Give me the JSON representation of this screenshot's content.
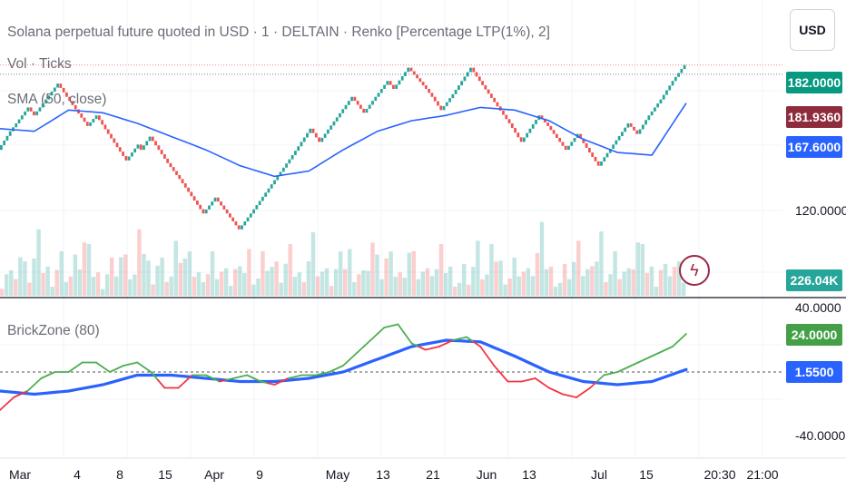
{
  "header": {
    "title": "Solana perpetual future quoted in USD · 1 · DELTAIN · Renko [Percentage LTP(1%), 2]",
    "vol_label": "Vol · Ticks",
    "sma_label": "SMA (50, close)",
    "indicator_label": "BrickZone (80)"
  },
  "currency_button": "USD",
  "price_axis": {
    "badges": {
      "last_price": "182.0000",
      "sma_value": "181.9360",
      "sma_line": "167.6000",
      "volume": "226.04K",
      "brickzone": "24.0000",
      "brickzone_signal": "1.5500"
    },
    "labels": {
      "p120": "120.0000",
      "osc_top": "40.0000",
      "osc_bottom": "-40.0000"
    }
  },
  "time_axis": [
    "Mar",
    "4",
    "8",
    "15",
    "Apr",
    "9",
    "May",
    "13",
    "21",
    "Jun",
    "13",
    "Jul",
    "15",
    "20:30",
    "21:00"
  ],
  "colors": {
    "up": "#26a69a",
    "down": "#ef5350",
    "sma": "#2962ff",
    "osc_up": "#4caf50",
    "osc_down": "#f23645",
    "signal": "#2962ff",
    "badge_green": "#089981",
    "badge_maroon": "#8e2c3b",
    "badge_blue": "#2962ff",
    "volume_badge": "#26a69a",
    "grid": "#f0f3fa"
  },
  "chart_data": [
    {
      "type": "line",
      "title": "Solana perpetual future quoted in USD · 1 · DELTAIN · Renko [Percentage LTP(1%), 2]",
      "series": [
        {
          "name": "",
          "style": "renko",
          "x": [
            0,
            2,
            4,
            6,
            8,
            10,
            12,
            14,
            16,
            18,
            20,
            22,
            24,
            26,
            28,
            30,
            32,
            34,
            36,
            38,
            40,
            42,
            44,
            46,
            48,
            50,
            52,
            54,
            56,
            58,
            60,
            62,
            64,
            66,
            68,
            70,
            72,
            74,
            76,
            78,
            80,
            82,
            84,
            86,
            88,
            90,
            92,
            94,
            96,
            98,
            100
          ],
          "values": [
            150,
            157,
            166,
            163,
            175,
            170,
            159,
            163,
            156,
            146,
            152,
            150,
            155,
            145,
            139,
            126,
            132,
            129,
            120,
            126,
            148,
            158,
            153,
            170,
            164,
            176,
            173,
            181,
            177,
            173,
            170,
            165,
            171,
            181,
            176,
            168,
            160,
            153,
            163,
            159,
            150,
            156,
            149,
            144,
            152,
            160,
            156,
            163,
            169,
            176,
            182
          ]
        },
        {
          "name": "SMA (50, close)",
          "x": [
            0,
            5,
            10,
            15,
            20,
            25,
            30,
            35,
            40,
            45,
            50,
            55,
            60,
            65,
            70,
            75,
            80,
            85,
            90,
            95,
            100
          ],
          "values": [
            158,
            157,
            165,
            164,
            160,
            155,
            150,
            144,
            140,
            142,
            150,
            157,
            161,
            163,
            166,
            165,
            161,
            154,
            149,
            148,
            167.6
          ]
        }
      ],
      "ylim": [
        110,
        186
      ],
      "reference_value": 181.936
    },
    {
      "type": "bar",
      "title": "Vol · Ticks",
      "note": "volume histogram",
      "values": [
        3,
        5,
        4,
        6,
        8,
        5,
        4,
        7,
        9,
        6,
        5,
        4,
        6,
        7,
        5,
        4,
        6,
        8,
        10,
        7,
        5,
        4,
        3,
        5,
        6,
        7,
        8,
        6,
        5,
        4,
        9,
        11,
        6,
        5,
        7,
        6,
        5,
        4,
        8,
        10,
        7,
        6,
        5,
        4,
        6,
        5,
        7,
        6,
        5,
        4
      ]
    },
    {
      "type": "line",
      "title": "BrickZone (80)",
      "series": [
        {
          "name": "BrickZone (80)",
          "x": [
            0,
            2,
            4,
            6,
            8,
            10,
            12,
            14,
            16,
            18,
            20,
            22,
            24,
            26,
            28,
            30,
            32,
            34,
            36,
            38,
            40,
            42,
            44,
            46,
            48,
            50,
            52,
            54,
            56,
            58,
            60,
            62,
            64,
            66,
            68,
            70,
            72,
            74,
            76,
            78,
            80,
            82,
            84,
            86,
            88,
            90,
            92,
            94,
            96,
            98,
            100
          ],
          "values": [
            -24,
            -16,
            -12,
            -4,
            0,
            0,
            6,
            6,
            0,
            4,
            6,
            0,
            -10,
            -10,
            -2,
            -2,
            -6,
            -4,
            -2,
            -6,
            -8,
            -4,
            -2,
            -2,
            0,
            4,
            12,
            20,
            28,
            30,
            18,
            14,
            16,
            20,
            22,
            16,
            4,
            -6,
            -6,
            -4,
            -10,
            -14,
            -16,
            -10,
            -2,
            0,
            4,
            8,
            12,
            16,
            24
          ]
        },
        {
          "name": "",
          "x": [
            0,
            5,
            10,
            15,
            20,
            25,
            30,
            35,
            40,
            45,
            50,
            55,
            60,
            65,
            70,
            75,
            80,
            85,
            90,
            95,
            100
          ],
          "values": [
            -12,
            -14,
            -12,
            -8,
            -2,
            -2,
            -4,
            -6,
            -6,
            -4,
            0,
            8,
            16,
            20,
            19,
            10,
            0,
            -6,
            -8,
            -6,
            1.55
          ]
        }
      ],
      "ylim": [
        -40,
        40
      ],
      "zero_line": 0
    }
  ]
}
